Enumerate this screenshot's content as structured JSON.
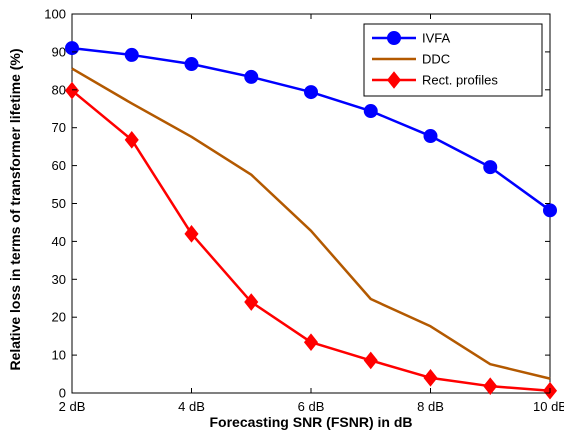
{
  "chart_data": {
    "type": "line",
    "title": "",
    "xlabel": "Forecasting SNR (FSNR) in dB",
    "ylabel": "Relative loss in terms of transformer lifetime (%)",
    "x": [
      2,
      3,
      4,
      5,
      6,
      7,
      8,
      9,
      10
    ],
    "xlim": [
      2,
      10
    ],
    "ylim": [
      0,
      100
    ],
    "x_ticks": [
      2,
      4,
      6,
      8,
      10
    ],
    "x_tick_labels": [
      "2 dB",
      "4 dB",
      "6 dB",
      "8 dB",
      "10 dB"
    ],
    "y_ticks": [
      0,
      10,
      20,
      30,
      40,
      50,
      60,
      70,
      80,
      90,
      100
    ],
    "y_tick_labels": [
      "0",
      "10",
      "20",
      "30",
      "40",
      "50",
      "60",
      "70",
      "80",
      "90",
      "100"
    ],
    "grid": true,
    "legend_position": "top-right",
    "series": [
      {
        "name": "IVFA",
        "color": "#0000ff",
        "marker": "circle",
        "values": [
          91,
          89.2,
          86.8,
          83.4,
          79.4,
          74.4,
          67.8,
          59.6,
          48.2
        ]
      },
      {
        "name": "DDC",
        "color": "#b35900",
        "marker": "none",
        "values": [
          85.6,
          76.4,
          67.6,
          57.6,
          42.8,
          24.8,
          17.6,
          7.6,
          3.8
        ]
      },
      {
        "name": "Rect. profiles",
        "color": "#ff0000",
        "marker": "diamond",
        "values": [
          79.8,
          66.8,
          42,
          24,
          13.4,
          8.6,
          4,
          1.8,
          0.6
        ]
      }
    ]
  }
}
